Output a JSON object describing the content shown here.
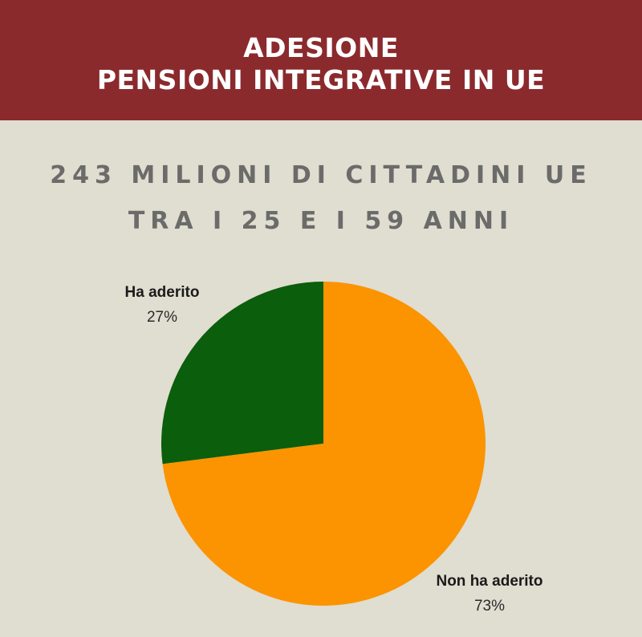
{
  "header": {
    "title_line1": "ADESIONE",
    "title_line2": "PENSIONI INTEGRATIVE IN UE",
    "background": "#8b2a2d"
  },
  "subtitle": {
    "line1": "243 MILIONI DI CITTADINI UE",
    "line2": "TRA I 25 E I 59 ANNI"
  },
  "chart_data": {
    "type": "pie",
    "categories": [
      "Ha aderito",
      "Non ha aderito"
    ],
    "values": [
      27,
      73
    ],
    "value_labels": [
      "27%",
      "73%"
    ],
    "colors": [
      "#0b5e0b",
      "#fb9400"
    ],
    "start_angle": "12 o'clock",
    "direction": "counter-clockwise"
  }
}
